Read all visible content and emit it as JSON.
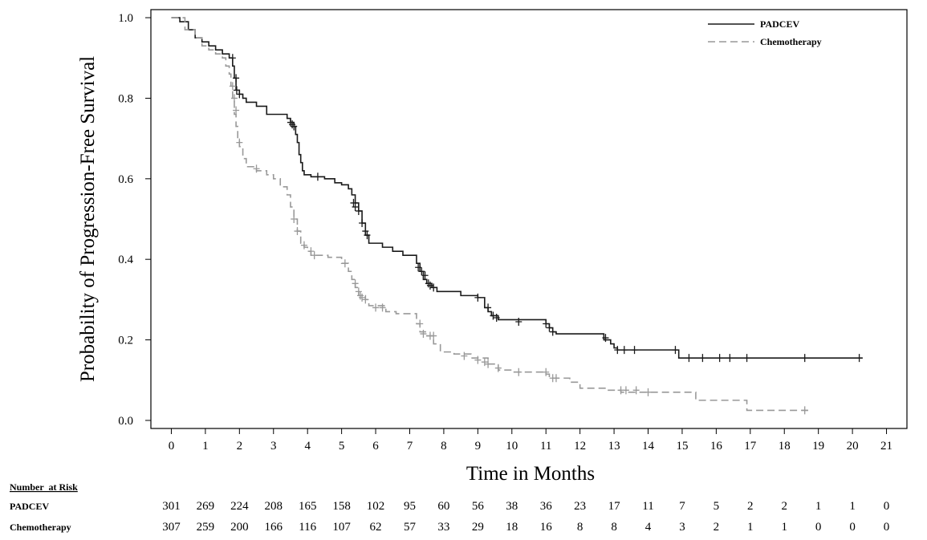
{
  "chart_data": {
    "type": "line",
    "title": "",
    "xlabel": "Time in Months",
    "ylabel": "Probability of Progression-Free Survival",
    "xlim": [
      -0.6,
      21.6
    ],
    "ylim": [
      -0.02,
      1.02
    ],
    "x_ticks": [
      0,
      1,
      2,
      3,
      4,
      5,
      6,
      7,
      8,
      9,
      10,
      11,
      12,
      13,
      14,
      15,
      16,
      17,
      18,
      19,
      20,
      21
    ],
    "y_ticks": [
      "0.0",
      "0.2",
      "0.4",
      "0.6",
      "0.8",
      "1.0"
    ],
    "grid": false,
    "legend_position": "top-right",
    "series": [
      {
        "name": "PADCEV",
        "color": "#1a1a1a",
        "dash": "solid",
        "steps": [
          [
            0,
            1.0
          ],
          [
            0.25,
            0.99
          ],
          [
            0.5,
            0.97
          ],
          [
            0.7,
            0.95
          ],
          [
            0.9,
            0.94
          ],
          [
            1.1,
            0.93
          ],
          [
            1.3,
            0.92
          ],
          [
            1.5,
            0.91
          ],
          [
            1.7,
            0.9
          ],
          [
            1.8,
            0.88
          ],
          [
            1.85,
            0.85
          ],
          [
            1.9,
            0.82
          ],
          [
            2.0,
            0.81
          ],
          [
            2.1,
            0.8
          ],
          [
            2.2,
            0.79
          ],
          [
            2.5,
            0.78
          ],
          [
            2.8,
            0.76
          ],
          [
            3.4,
            0.75
          ],
          [
            3.5,
            0.74
          ],
          [
            3.6,
            0.73
          ],
          [
            3.65,
            0.71
          ],
          [
            3.7,
            0.69
          ],
          [
            3.75,
            0.66
          ],
          [
            3.8,
            0.64
          ],
          [
            3.85,
            0.62
          ],
          [
            3.9,
            0.61
          ],
          [
            4.1,
            0.605
          ],
          [
            4.5,
            0.6
          ],
          [
            4.8,
            0.59
          ],
          [
            5.0,
            0.585
          ],
          [
            5.2,
            0.575
          ],
          [
            5.3,
            0.56
          ],
          [
            5.4,
            0.54
          ],
          [
            5.5,
            0.52
          ],
          [
            5.6,
            0.49
          ],
          [
            5.7,
            0.46
          ],
          [
            5.8,
            0.44
          ],
          [
            6.2,
            0.43
          ],
          [
            6.5,
            0.42
          ],
          [
            6.8,
            0.41
          ],
          [
            7.2,
            0.39
          ],
          [
            7.3,
            0.37
          ],
          [
            7.4,
            0.35
          ],
          [
            7.5,
            0.34
          ],
          [
            7.65,
            0.33
          ],
          [
            7.8,
            0.32
          ],
          [
            8.5,
            0.31
          ],
          [
            9.0,
            0.305
          ],
          [
            9.2,
            0.28
          ],
          [
            9.3,
            0.27
          ],
          [
            9.4,
            0.26
          ],
          [
            9.6,
            0.25
          ],
          [
            11.0,
            0.24
          ],
          [
            11.1,
            0.23
          ],
          [
            11.2,
            0.22
          ],
          [
            11.3,
            0.215
          ],
          [
            12.7,
            0.2
          ],
          [
            12.9,
            0.19
          ],
          [
            13.0,
            0.18
          ],
          [
            13.1,
            0.175
          ],
          [
            14.9,
            0.155
          ],
          [
            20.3,
            0.155
          ]
        ],
        "censors": [
          [
            1.8,
            0.9
          ],
          [
            1.9,
            0.85
          ],
          [
            1.92,
            0.82
          ],
          [
            2.0,
            0.81
          ],
          [
            3.5,
            0.74
          ],
          [
            3.55,
            0.735
          ],
          [
            3.6,
            0.73
          ],
          [
            4.3,
            0.605
          ],
          [
            5.35,
            0.54
          ],
          [
            5.4,
            0.53
          ],
          [
            5.5,
            0.52
          ],
          [
            5.6,
            0.49
          ],
          [
            5.7,
            0.47
          ],
          [
            5.75,
            0.46
          ],
          [
            7.25,
            0.38
          ],
          [
            7.35,
            0.37
          ],
          [
            7.45,
            0.36
          ],
          [
            7.55,
            0.34
          ],
          [
            7.6,
            0.335
          ],
          [
            7.7,
            0.33
          ],
          [
            9.0,
            0.305
          ],
          [
            9.3,
            0.28
          ],
          [
            9.45,
            0.26
          ],
          [
            9.55,
            0.255
          ],
          [
            10.2,
            0.245
          ],
          [
            11.0,
            0.24
          ],
          [
            11.1,
            0.23
          ],
          [
            11.2,
            0.22
          ],
          [
            12.75,
            0.205
          ],
          [
            13.1,
            0.175
          ],
          [
            13.3,
            0.175
          ],
          [
            13.6,
            0.175
          ],
          [
            14.8,
            0.175
          ],
          [
            15.2,
            0.155
          ],
          [
            15.6,
            0.155
          ],
          [
            16.1,
            0.155
          ],
          [
            16.4,
            0.155
          ],
          [
            16.9,
            0.155
          ],
          [
            18.6,
            0.155
          ],
          [
            20.2,
            0.155
          ]
        ]
      },
      {
        "name": "Chemotherapy",
        "color": "#999999",
        "dash": "dashed",
        "steps": [
          [
            0,
            1.0
          ],
          [
            0.4,
            0.97
          ],
          [
            0.7,
            0.95
          ],
          [
            0.9,
            0.93
          ],
          [
            1.1,
            0.92
          ],
          [
            1.3,
            0.91
          ],
          [
            1.5,
            0.9
          ],
          [
            1.6,
            0.88
          ],
          [
            1.7,
            0.86
          ],
          [
            1.75,
            0.83
          ],
          [
            1.8,
            0.8
          ],
          [
            1.85,
            0.76
          ],
          [
            1.9,
            0.73
          ],
          [
            1.95,
            0.7
          ],
          [
            2.0,
            0.68
          ],
          [
            2.1,
            0.65
          ],
          [
            2.2,
            0.63
          ],
          [
            2.5,
            0.62
          ],
          [
            2.8,
            0.61
          ],
          [
            3.0,
            0.6
          ],
          [
            3.2,
            0.58
          ],
          [
            3.4,
            0.56
          ],
          [
            3.5,
            0.53
          ],
          [
            3.6,
            0.5
          ],
          [
            3.7,
            0.47
          ],
          [
            3.8,
            0.44
          ],
          [
            3.9,
            0.43
          ],
          [
            4.0,
            0.42
          ],
          [
            4.1,
            0.41
          ],
          [
            4.6,
            0.405
          ],
          [
            5.0,
            0.39
          ],
          [
            5.2,
            0.37
          ],
          [
            5.3,
            0.35
          ],
          [
            5.4,
            0.33
          ],
          [
            5.5,
            0.31
          ],
          [
            5.7,
            0.3
          ],
          [
            5.8,
            0.285
          ],
          [
            6.3,
            0.27
          ],
          [
            6.6,
            0.265
          ],
          [
            7.2,
            0.24
          ],
          [
            7.3,
            0.22
          ],
          [
            7.5,
            0.21
          ],
          [
            7.7,
            0.19
          ],
          [
            7.9,
            0.17
          ],
          [
            8.3,
            0.165
          ],
          [
            8.8,
            0.155
          ],
          [
            9.3,
            0.14
          ],
          [
            9.6,
            0.125
          ],
          [
            10.0,
            0.12
          ],
          [
            11.0,
            0.115
          ],
          [
            11.1,
            0.105
          ],
          [
            11.7,
            0.095
          ],
          [
            12.0,
            0.08
          ],
          [
            12.8,
            0.075
          ],
          [
            13.2,
            0.07
          ],
          [
            15.4,
            0.05
          ],
          [
            16.9,
            0.025
          ],
          [
            18.7,
            0.025
          ]
        ],
        "censors": [
          [
            1.8,
            0.83
          ],
          [
            1.85,
            0.8
          ],
          [
            1.9,
            0.77
          ],
          [
            2.0,
            0.69
          ],
          [
            2.5,
            0.625
          ],
          [
            3.6,
            0.5
          ],
          [
            3.7,
            0.47
          ],
          [
            3.9,
            0.435
          ],
          [
            4.1,
            0.42
          ],
          [
            4.2,
            0.41
          ],
          [
            5.1,
            0.39
          ],
          [
            5.4,
            0.34
          ],
          [
            5.5,
            0.32
          ],
          [
            5.55,
            0.31
          ],
          [
            5.6,
            0.305
          ],
          [
            5.7,
            0.3
          ],
          [
            6.0,
            0.28
          ],
          [
            6.2,
            0.28
          ],
          [
            7.3,
            0.24
          ],
          [
            7.4,
            0.215
          ],
          [
            7.6,
            0.21
          ],
          [
            7.7,
            0.21
          ],
          [
            8.6,
            0.16
          ],
          [
            9.0,
            0.15
          ],
          [
            9.2,
            0.145
          ],
          [
            9.3,
            0.14
          ],
          [
            9.6,
            0.13
          ],
          [
            10.2,
            0.12
          ],
          [
            11.0,
            0.12
          ],
          [
            11.2,
            0.105
          ],
          [
            11.3,
            0.105
          ],
          [
            13.2,
            0.075
          ],
          [
            13.35,
            0.075
          ],
          [
            13.65,
            0.075
          ],
          [
            14.0,
            0.07
          ],
          [
            18.6,
            0.025
          ]
        ]
      }
    ],
    "number_at_risk": {
      "title": "Number  at Risk",
      "rows": [
        {
          "label": "PADCEV",
          "values": [
            301,
            269,
            224,
            208,
            165,
            158,
            102,
            95,
            60,
            56,
            38,
            36,
            23,
            17,
            11,
            7,
            5,
            2,
            2,
            1,
            1,
            0
          ]
        },
        {
          "label": "Chemotherapy",
          "values": [
            307,
            259,
            200,
            166,
            116,
            107,
            62,
            57,
            33,
            29,
            18,
            16,
            8,
            8,
            4,
            3,
            2,
            1,
            1,
            0,
            0,
            0
          ]
        }
      ]
    }
  }
}
